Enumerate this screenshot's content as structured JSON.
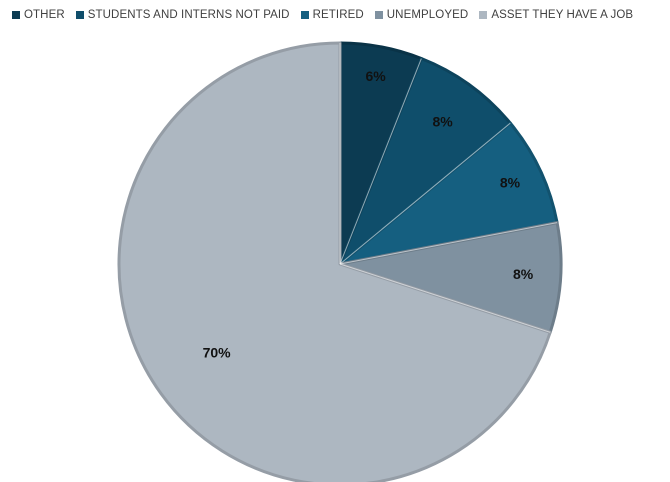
{
  "chart_data": {
    "type": "pie",
    "categories": [
      "OTHER",
      "STUDENTS AND INTERNS NOT PAID",
      "RETIRED",
      "UNEMPLOYED",
      "ASSET THEY HAVE A JOB"
    ],
    "values": [
      6,
      8,
      8,
      8,
      70
    ],
    "data_labels": [
      "6%",
      "8%",
      "8%",
      "8%",
      "70%"
    ],
    "colors": [
      "#0c3b52",
      "#0f4e6b",
      "#155f80",
      "#7f91a0",
      "#adb7c1"
    ],
    "legend_position": "top",
    "title": ""
  }
}
